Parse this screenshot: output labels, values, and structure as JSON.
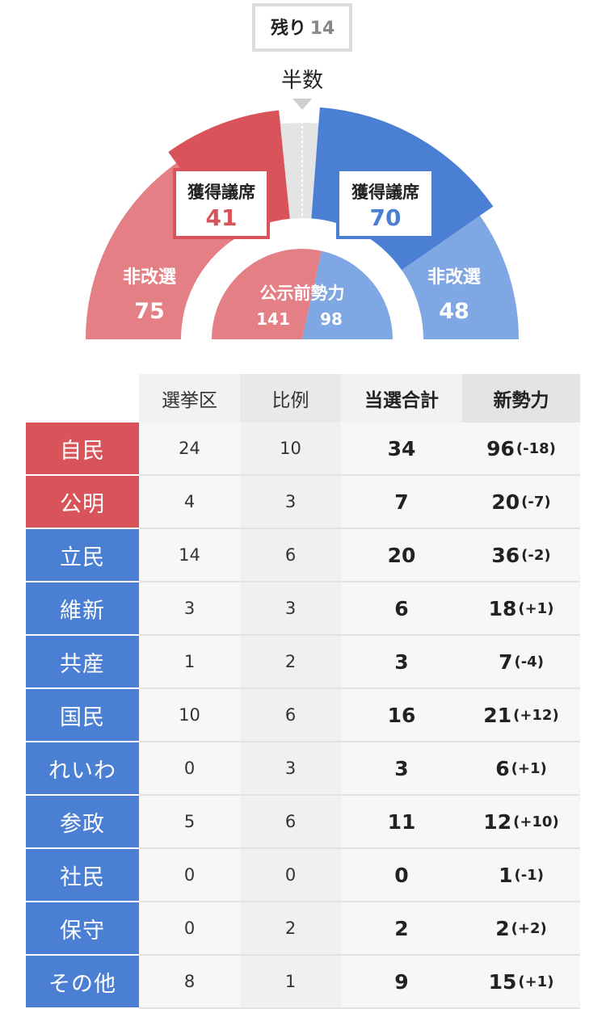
{
  "remaining": {
    "label": "残り",
    "value": "14"
  },
  "half_label": "半数",
  "colors": {
    "ruling": "#d9545a",
    "ruling_light": "#e47f86",
    "opposition": "#4a7fd4",
    "opposition_light": "#7fa7e4",
    "undecided": "#e4e4e4"
  },
  "chart_data": {
    "type": "pie",
    "title": "",
    "semicircle": true,
    "total_seats": 248,
    "segments": [
      {
        "label": "非改選",
        "group": "ruling",
        "value": 75
      },
      {
        "label": "獲得議席",
        "group": "ruling",
        "value": 41
      },
      {
        "label": "残り",
        "group": "undecided",
        "value": 14
      },
      {
        "label": "獲得議席",
        "group": "opposition",
        "value": 70
      },
      {
        "label": "非改選",
        "group": "opposition",
        "value": 48
      }
    ],
    "inner": {
      "label": "公示前勢力",
      "ruling": 141,
      "opposition": 98
    }
  },
  "labels": {
    "left_won_title": "獲得議席",
    "left_won_value": "41",
    "right_won_title": "獲得議席",
    "right_won_value": "70",
    "left_nonup_title": "非改選",
    "left_nonup_value": "75",
    "right_nonup_title": "非改選",
    "right_nonup_value": "48",
    "inner_title": "公示前勢力",
    "inner_left": "141",
    "inner_right": "98"
  },
  "table": {
    "headers": [
      "選挙区",
      "比例",
      "当選合計",
      "新勢力"
    ],
    "rows": [
      {
        "party": "自民",
        "group": "ruling",
        "district": "24",
        "pr": "10",
        "total": "34",
        "new": "96",
        "delta": "(-18)"
      },
      {
        "party": "公明",
        "group": "ruling",
        "district": "4",
        "pr": "3",
        "total": "7",
        "new": "20",
        "delta": "(-7)"
      },
      {
        "party": "立民",
        "group": "opposition",
        "district": "14",
        "pr": "6",
        "total": "20",
        "new": "36",
        "delta": "(-2)"
      },
      {
        "party": "維新",
        "group": "opposition",
        "district": "3",
        "pr": "3",
        "total": "6",
        "new": "18",
        "delta": "(+1)"
      },
      {
        "party": "共産",
        "group": "opposition",
        "district": "1",
        "pr": "2",
        "total": "3",
        "new": "7",
        "delta": "(-4)"
      },
      {
        "party": "国民",
        "group": "opposition",
        "district": "10",
        "pr": "6",
        "total": "16",
        "new": "21",
        "delta": "(+12)"
      },
      {
        "party": "れいわ",
        "group": "opposition",
        "district": "0",
        "pr": "3",
        "total": "3",
        "new": "6",
        "delta": "(+1)"
      },
      {
        "party": "参政",
        "group": "opposition",
        "district": "5",
        "pr": "6",
        "total": "11",
        "new": "12",
        "delta": "(+10)"
      },
      {
        "party": "社民",
        "group": "opposition",
        "district": "0",
        "pr": "0",
        "total": "0",
        "new": "1",
        "delta": "(-1)"
      },
      {
        "party": "保守",
        "group": "opposition",
        "district": "0",
        "pr": "2",
        "total": "2",
        "new": "2",
        "delta": "(+2)"
      },
      {
        "party": "その他",
        "group": "opposition",
        "district": "8",
        "pr": "1",
        "total": "9",
        "new": "15",
        "delta": "(+1)"
      }
    ]
  }
}
